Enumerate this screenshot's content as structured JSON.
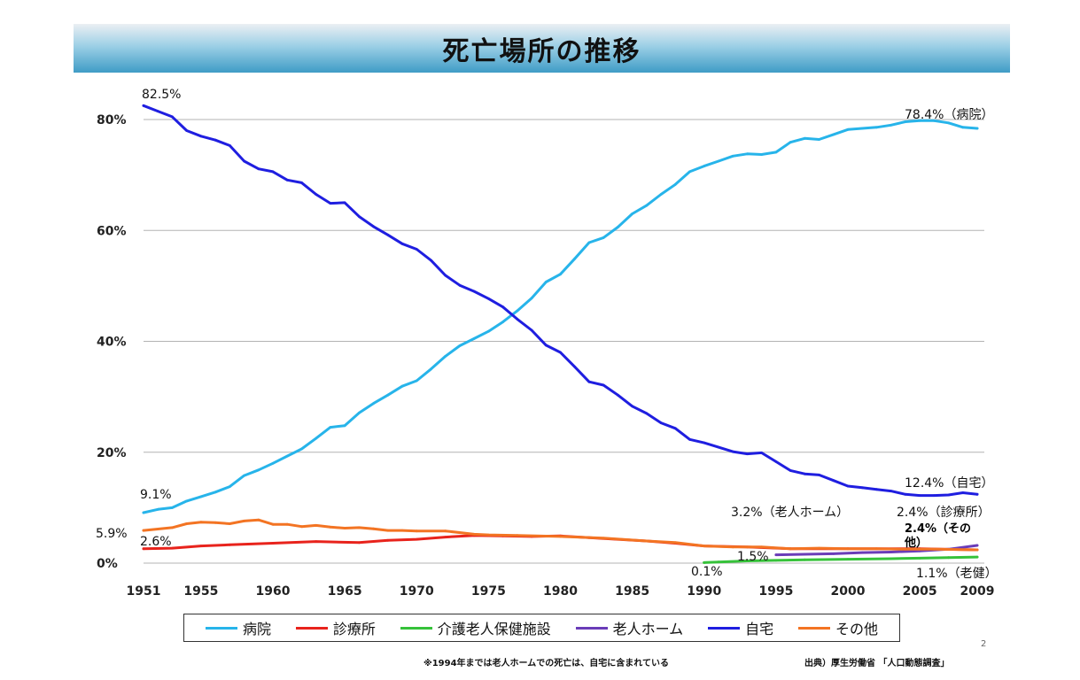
{
  "title": "死亡場所の推移",
  "footnote": "※1994年までは老人ホームでの死亡は、自宅に含まれている",
  "source": "出典）厚生労働省 「人口動態調査」",
  "page_number": "2",
  "colors": {
    "hospital": "#27b4ea",
    "clinic": "#e8231c",
    "care_facility": "#36c23a",
    "nursing_home": "#6a3cb8",
    "home": "#1f1ee0",
    "other": "#f37423",
    "grid": "#b3b3b3"
  },
  "chart_data": {
    "type": "line",
    "title": "死亡場所の推移",
    "xlabel": "",
    "ylabel": "",
    "ylim": [
      0,
      82.5
    ],
    "grid": true,
    "legend_position": "bottom",
    "y_ticks": [
      {
        "value": 0,
        "label": "0%"
      },
      {
        "value": 20,
        "label": "20%"
      },
      {
        "value": 40,
        "label": "40%"
      },
      {
        "value": 60,
        "label": "60%"
      },
      {
        "value": 80,
        "label": "80%"
      }
    ],
    "x_ticks": [
      1951,
      1955,
      1960,
      1965,
      1970,
      1975,
      1980,
      1985,
      1990,
      1995,
      2000,
      2005,
      2009
    ],
    "series": [
      {
        "key": "hospital",
        "name": "病院",
        "x": [
          1951,
          1952,
          1953,
          1954,
          1955,
          1956,
          1957,
          1958,
          1959,
          1960,
          1961,
          1962,
          1963,
          1964,
          1965,
          1966,
          1967,
          1968,
          1969,
          1970,
          1971,
          1972,
          1973,
          1974,
          1975,
          1976,
          1977,
          1978,
          1979,
          1980,
          1981,
          1982,
          1983,
          1984,
          1985,
          1986,
          1987,
          1988,
          1989,
          1990,
          1991,
          1992,
          1993,
          1994,
          1995,
          1996,
          1997,
          1998,
          1999,
          2000,
          2001,
          2002,
          2003,
          2004,
          2005,
          2006,
          2007,
          2008,
          2009
        ],
        "values": [
          9.1,
          9.7,
          10.0,
          11.2,
          12.0,
          12.8,
          13.8,
          15.8,
          16.8,
          18.0,
          19.3,
          20.6,
          22.5,
          24.5,
          24.8,
          27.1,
          28.8,
          30.3,
          31.9,
          32.9,
          35.0,
          37.3,
          39.2,
          40.5,
          41.8,
          43.5,
          45.5,
          47.8,
          50.7,
          52.1,
          54.9,
          57.8,
          58.7,
          60.6,
          63.0,
          64.5,
          66.5,
          68.3,
          70.6,
          71.6,
          72.5,
          73.4,
          73.8,
          73.7,
          74.1,
          75.9,
          76.6,
          76.4,
          77.3,
          78.2,
          78.4,
          78.6,
          79.0,
          79.6,
          79.8,
          79.8,
          79.4,
          78.6,
          78.4
        ]
      },
      {
        "key": "clinic",
        "name": "診療所",
        "x": [
          1951,
          1953,
          1955,
          1957,
          1960,
          1963,
          1966,
          1968,
          1970,
          1972,
          1974,
          1976,
          1978,
          1980,
          1982,
          1984,
          1986,
          1988,
          1990,
          1993,
          1996,
          2000,
          2005,
          2009
        ],
        "values": [
          2.6,
          2.7,
          3.1,
          3.3,
          3.6,
          3.9,
          3.7,
          4.1,
          4.3,
          4.7,
          5.0,
          4.9,
          4.8,
          4.9,
          4.6,
          4.3,
          4.0,
          3.6,
          3.1,
          2.9,
          2.6,
          2.6,
          2.6,
          2.4
        ]
      },
      {
        "key": "care_facility",
        "name": "介護老人保健施設",
        "x": [
          1990,
          1991,
          1993,
          1995,
          1997,
          2000,
          2003,
          2005,
          2007,
          2009
        ],
        "values": [
          0.1,
          0.2,
          0.4,
          0.5,
          0.6,
          0.7,
          0.8,
          0.9,
          1.0,
          1.1
        ]
      },
      {
        "key": "nursing_home",
        "name": "老人ホーム",
        "x": [
          1995,
          1997,
          1999,
          2001,
          2003,
          2005,
          2007,
          2009
        ],
        "values": [
          1.5,
          1.6,
          1.7,
          1.9,
          2.0,
          2.2,
          2.5,
          3.2
        ]
      },
      {
        "key": "home",
        "name": "自宅",
        "x": [
          1951,
          1952,
          1953,
          1954,
          1955,
          1956,
          1957,
          1958,
          1959,
          1960,
          1961,
          1962,
          1963,
          1964,
          1965,
          1966,
          1967,
          1968,
          1969,
          1970,
          1971,
          1972,
          1973,
          1974,
          1975,
          1976,
          1977,
          1978,
          1979,
          1980,
          1981,
          1982,
          1983,
          1984,
          1985,
          1986,
          1987,
          1988,
          1989,
          1990,
          1991,
          1992,
          1993,
          1994,
          1995,
          1996,
          1997,
          1998,
          1999,
          2000,
          2001,
          2002,
          2003,
          2004,
          2005,
          2006,
          2007,
          2008,
          2009
        ],
        "values": [
          82.5,
          81.5,
          80.5,
          78.0,
          77.0,
          76.3,
          75.3,
          72.5,
          71.1,
          70.6,
          69.1,
          68.6,
          66.5,
          64.9,
          65.0,
          62.5,
          60.7,
          59.2,
          57.6,
          56.6,
          54.6,
          51.9,
          50.1,
          49.0,
          47.7,
          46.2,
          44.0,
          42.0,
          39.3,
          38.0,
          35.4,
          32.7,
          32.1,
          30.3,
          28.3,
          27.0,
          25.3,
          24.3,
          22.3,
          21.7,
          20.9,
          20.1,
          19.7,
          19.9,
          18.3,
          16.7,
          16.1,
          15.9,
          14.9,
          13.9,
          13.6,
          13.3,
          13.0,
          12.4,
          12.2,
          12.2,
          12.3,
          12.7,
          12.4
        ]
      },
      {
        "key": "other",
        "name": "その他",
        "x": [
          1951,
          1953,
          1954,
          1955,
          1956,
          1957,
          1958,
          1959,
          1960,
          1961,
          1962,
          1963,
          1964,
          1965,
          1966,
          1967,
          1968,
          1969,
          1970,
          1972,
          1974,
          1975,
          1977,
          1980,
          1983,
          1986,
          1988,
          1990,
          1992,
          1994,
          1996,
          1998,
          2000,
          2002,
          2004,
          2006,
          2009
        ],
        "values": [
          5.9,
          6.4,
          7.1,
          7.4,
          7.3,
          7.1,
          7.6,
          7.8,
          7.0,
          7.0,
          6.6,
          6.8,
          6.5,
          6.3,
          6.4,
          6.2,
          5.9,
          5.9,
          5.8,
          5.8,
          5.2,
          5.1,
          5.0,
          4.8,
          4.5,
          4.0,
          3.7,
          3.1,
          2.9,
          2.9,
          2.6,
          2.7,
          2.6,
          2.6,
          2.5,
          2.5,
          2.4
        ]
      }
    ],
    "annotations": [
      {
        "text": "82.5%",
        "series": "home"
      },
      {
        "text": "9.1%",
        "series": "hospital"
      },
      {
        "text": "5.9%",
        "series": "other"
      },
      {
        "text": "2.6%",
        "series": "clinic"
      },
      {
        "text": "78.4%（病院）",
        "series": "hospital"
      },
      {
        "text": "12.4%（自宅）",
        "series": "home"
      },
      {
        "text": "3.2%（老人ホーム）",
        "series": "nursing_home"
      },
      {
        "text": "2.4%（診療所）",
        "series": "clinic"
      },
      {
        "text": "2.4%（その",
        "series": "other"
      },
      {
        "text": "他）",
        "series": "other"
      },
      {
        "text": "1.5%",
        "series": "nursing_home"
      },
      {
        "text": "0.1%",
        "series": "care_facility"
      },
      {
        "text": "1.1%（老健）",
        "series": "care_facility"
      }
    ]
  }
}
